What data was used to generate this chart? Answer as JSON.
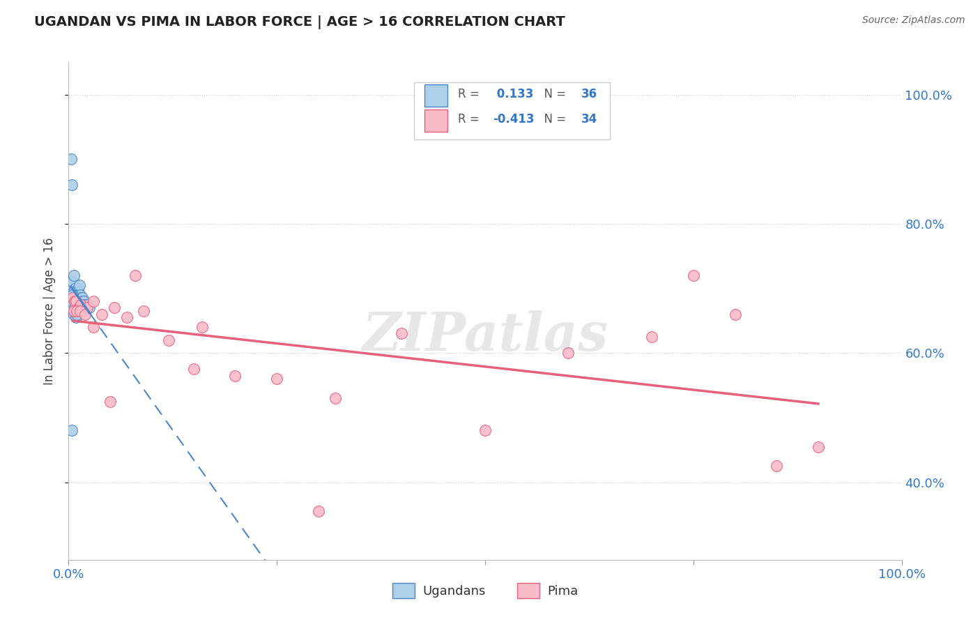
{
  "title": "UGANDAN VS PIMA IN LABOR FORCE | AGE > 16 CORRELATION CHART",
  "source": "Source: ZipAtlas.com",
  "ylabel": "In Labor Force | Age > 16",
  "legend_label1": "Ugandans",
  "legend_label2": "Pima",
  "r1": 0.133,
  "n1": 36,
  "r2": -0.413,
  "n2": 34,
  "ugandan_color": "#aecfe8",
  "pima_color": "#f7bcc8",
  "ugandan_line_color": "#4a86c8",
  "pima_line_color": "#e8607a",
  "watermark": "ZIPatlas",
  "ugandan_x": [
    0.003,
    0.004,
    0.004,
    0.005,
    0.006,
    0.006,
    0.007,
    0.007,
    0.008,
    0.008,
    0.009,
    0.009,
    0.01,
    0.01,
    0.011,
    0.011,
    0.012,
    0.012,
    0.013,
    0.014,
    0.015,
    0.016,
    0.017,
    0.018,
    0.02,
    0.022,
    0.025,
    0.003,
    0.004,
    0.005,
    0.006,
    0.007,
    0.008,
    0.009,
    0.01,
    0.004
  ],
  "ugandan_y": [
    0.9,
    0.86,
    0.705,
    0.71,
    0.72,
    0.685,
    0.7,
    0.69,
    0.685,
    0.675,
    0.69,
    0.68,
    0.685,
    0.68,
    0.7,
    0.695,
    0.69,
    0.685,
    0.705,
    0.69,
    0.685,
    0.685,
    0.68,
    0.68,
    0.675,
    0.675,
    0.67,
    0.685,
    0.68,
    0.69,
    0.66,
    0.67,
    0.665,
    0.655,
    0.66,
    0.48
  ],
  "pima_x": [
    0.005,
    0.007,
    0.009,
    0.012,
    0.015,
    0.018,
    0.022,
    0.03,
    0.04,
    0.055,
    0.07,
    0.09,
    0.12,
    0.16,
    0.2,
    0.25,
    0.32,
    0.4,
    0.5,
    0.6,
    0.7,
    0.75,
    0.8,
    0.85,
    0.006,
    0.01,
    0.014,
    0.02,
    0.03,
    0.05,
    0.08,
    0.15,
    0.3,
    0.9
  ],
  "pima_y": [
    0.685,
    0.68,
    0.68,
    0.67,
    0.675,
    0.665,
    0.67,
    0.68,
    0.66,
    0.67,
    0.655,
    0.665,
    0.62,
    0.64,
    0.565,
    0.56,
    0.53,
    0.63,
    0.48,
    0.6,
    0.625,
    0.72,
    0.66,
    0.425,
    0.665,
    0.665,
    0.665,
    0.66,
    0.64,
    0.525,
    0.72,
    0.575,
    0.355,
    0.455
  ],
  "xmin": 0.0,
  "xmax": 1.0,
  "ymin": 0.28,
  "ymax": 1.05,
  "yticks": [
    0.4,
    0.6,
    0.8,
    1.0
  ],
  "ytick_labels": [
    "40.0%",
    "60.0%",
    "80.0%",
    "100.0%"
  ],
  "xticks": [
    0.0,
    0.25,
    0.5,
    0.75,
    1.0
  ],
  "xtick_labels": [
    "0.0%",
    "",
    "",
    "",
    "100.0%"
  ]
}
